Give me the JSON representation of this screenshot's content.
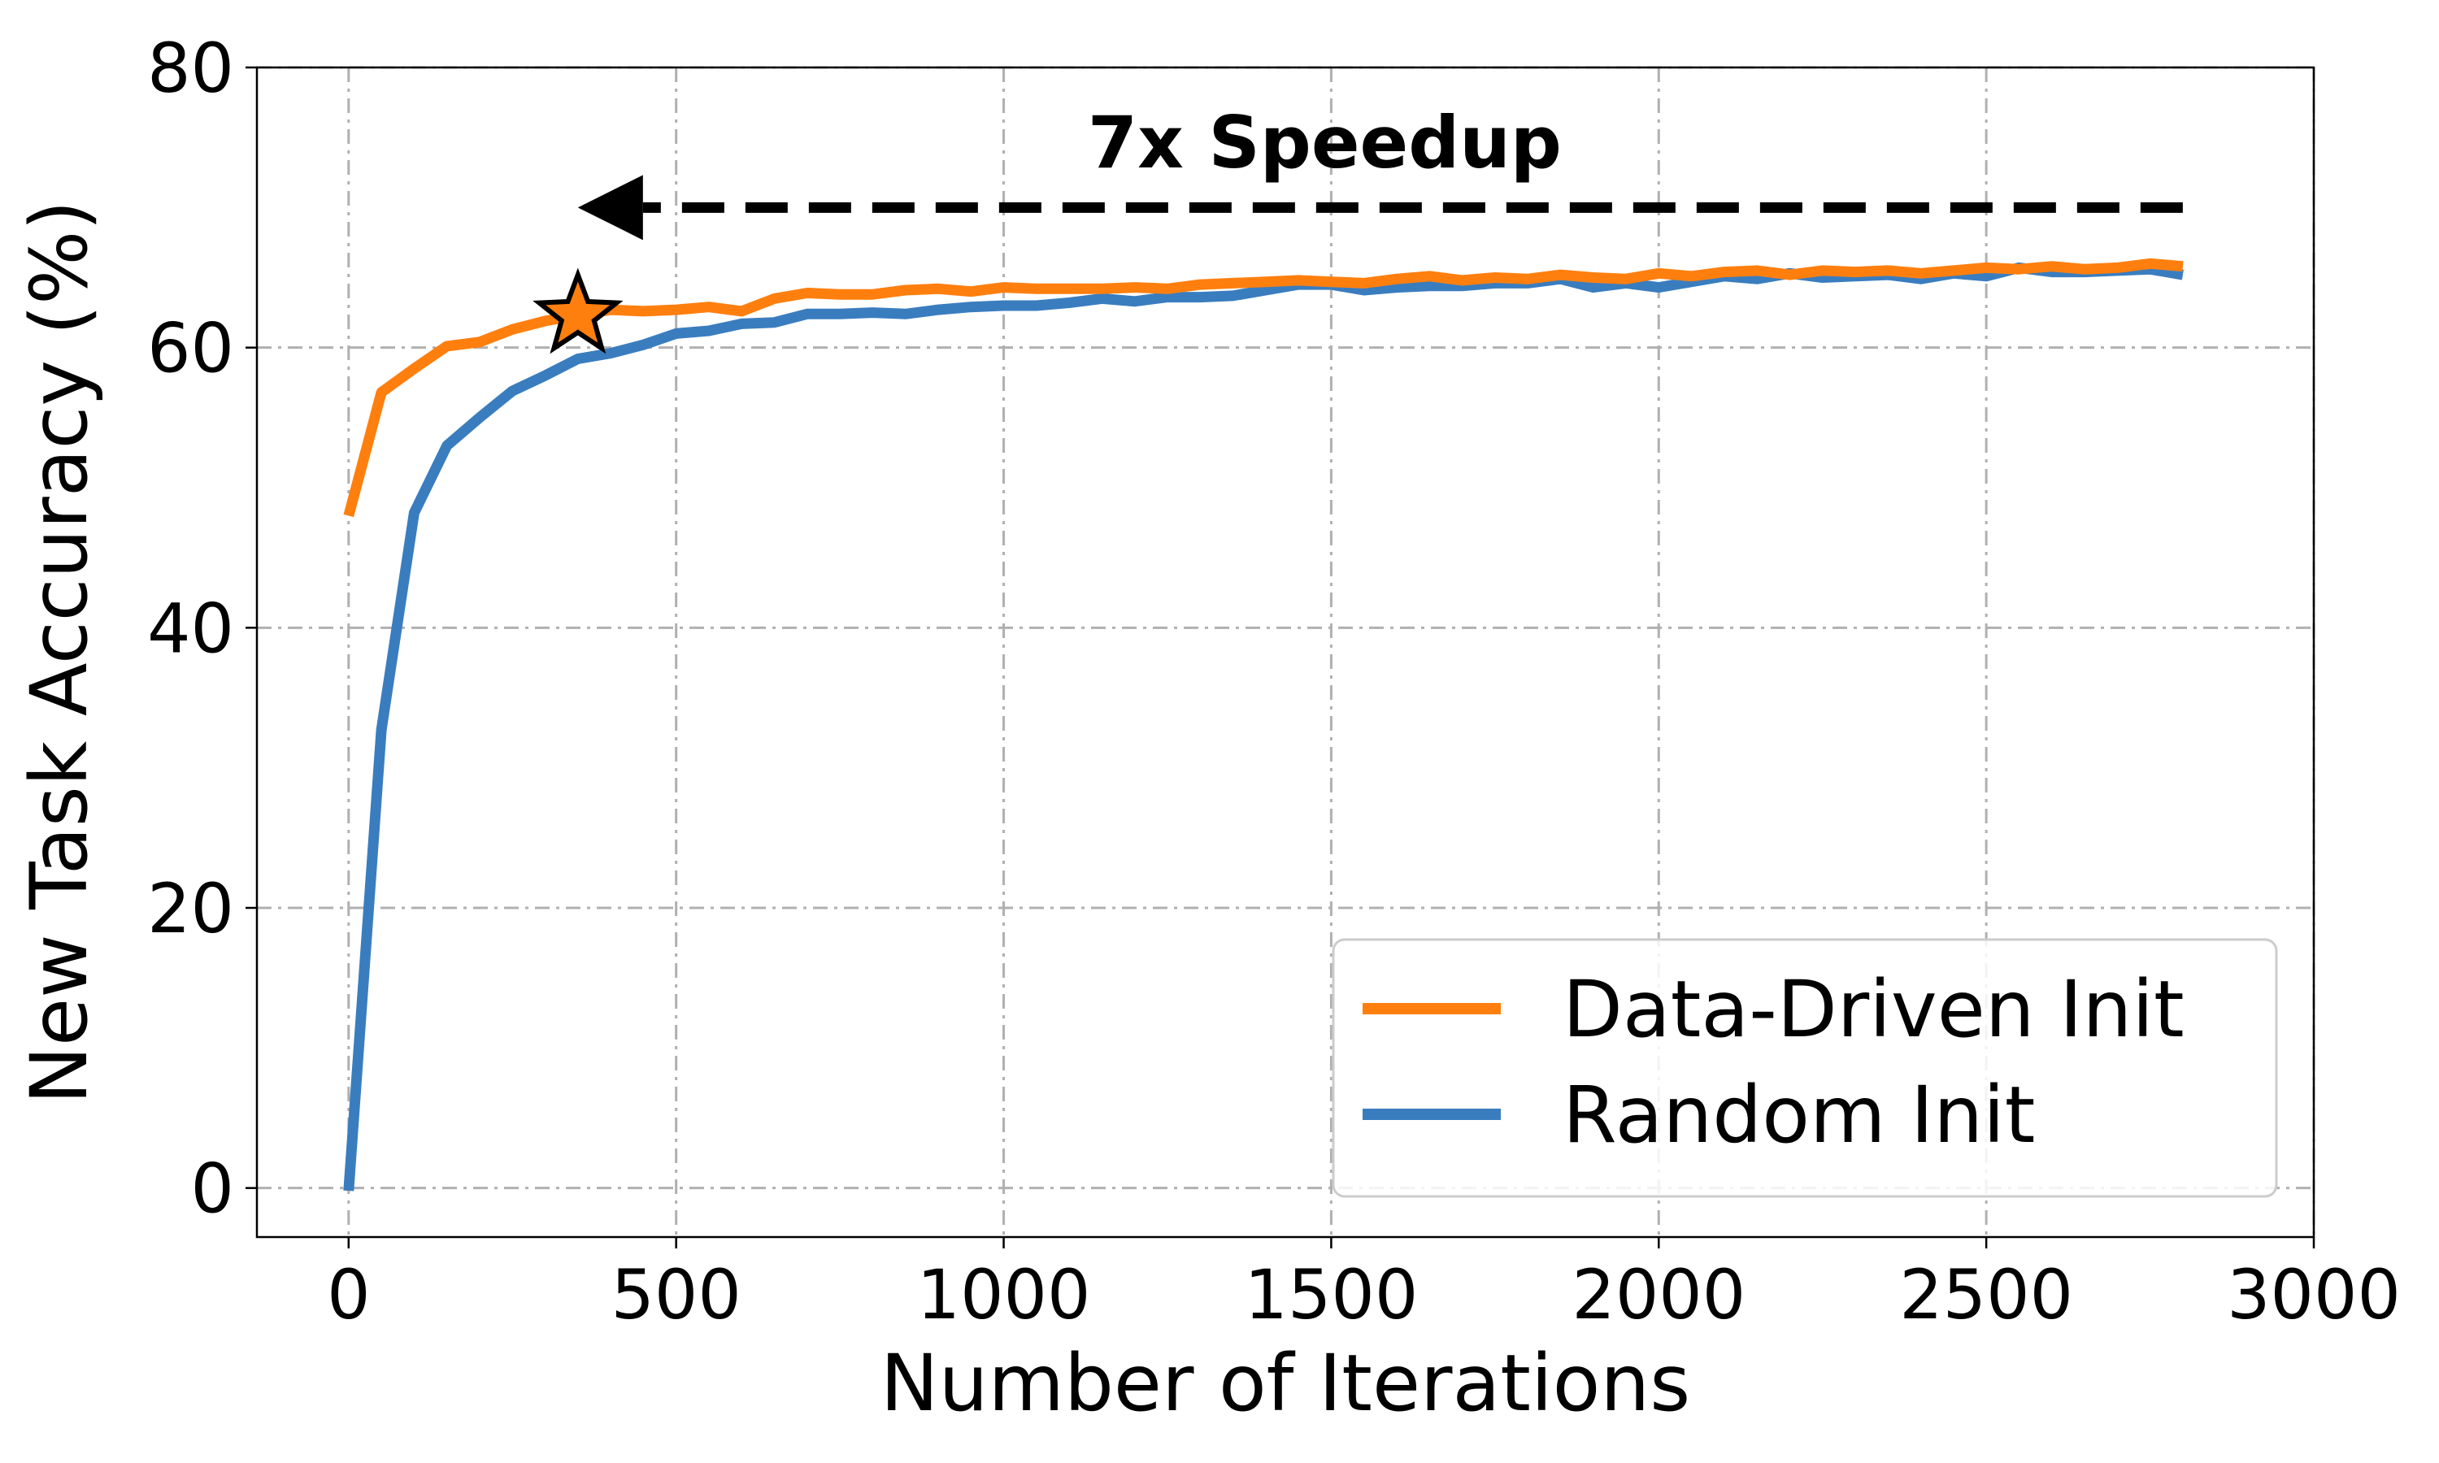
{
  "chart_data": {
    "type": "line",
    "xlabel": "Number of Iterations",
    "ylabel": "New Task Accuracy (%)",
    "xlim": [
      -140,
      3000
    ],
    "ylim": [
      -3.5,
      80
    ],
    "xticks": [
      0,
      500,
      1000,
      1500,
      2000,
      2500,
      3000
    ],
    "yticks": [
      0,
      20,
      40,
      60,
      80
    ],
    "grid": true,
    "legend_position": "lower-right",
    "series": [
      {
        "name": "Data-Driven Init",
        "color": "#ff7f0e",
        "x": [
          0,
          50,
          100,
          150,
          200,
          250,
          300,
          350,
          400,
          450,
          500,
          550,
          600,
          650,
          700,
          750,
          800,
          850,
          900,
          950,
          1000,
          1050,
          1100,
          1150,
          1200,
          1250,
          1300,
          1350,
          1400,
          1450,
          1500,
          1550,
          1600,
          1650,
          1700,
          1750,
          1800,
          1850,
          1900,
          1950,
          2000,
          2050,
          2100,
          2150,
          2200,
          2250,
          2300,
          2350,
          2400,
          2450,
          2500,
          2550,
          2600,
          2650,
          2700,
          2750,
          2800
        ],
        "y": [
          48.0,
          56.8,
          58.5,
          60.1,
          60.4,
          61.3,
          61.9,
          62.3,
          62.7,
          62.6,
          62.7,
          62.9,
          62.6,
          63.5,
          63.9,
          63.8,
          63.8,
          64.1,
          64.2,
          64.0,
          64.3,
          64.2,
          64.2,
          64.2,
          64.3,
          64.2,
          64.5,
          64.6,
          64.7,
          64.8,
          64.7,
          64.6,
          64.9,
          65.1,
          64.8,
          65.0,
          64.9,
          65.2,
          65.0,
          64.9,
          65.3,
          65.1,
          65.4,
          65.5,
          65.2,
          65.5,
          65.4,
          65.5,
          65.3,
          65.5,
          65.7,
          65.6,
          65.8,
          65.6,
          65.7,
          66.0,
          65.8
        ]
      },
      {
        "name": "Random Init",
        "color": "#3a7dbf",
        "x": [
          0,
          50,
          100,
          150,
          200,
          250,
          300,
          350,
          400,
          450,
          500,
          550,
          600,
          650,
          700,
          750,
          800,
          850,
          900,
          950,
          1000,
          1050,
          1100,
          1150,
          1200,
          1250,
          1300,
          1350,
          1400,
          1450,
          1500,
          1550,
          1600,
          1650,
          1700,
          1750,
          1800,
          1850,
          1900,
          1950,
          2000,
          2050,
          2100,
          2150,
          2200,
          2250,
          2300,
          2350,
          2400,
          2450,
          2500,
          2550,
          2600,
          2650,
          2700,
          2750,
          2800
        ],
        "y": [
          -0.2,
          32.7,
          48.2,
          53.0,
          55.0,
          56.9,
          58.0,
          59.2,
          59.6,
          60.2,
          61.0,
          61.2,
          61.7,
          61.8,
          62.4,
          62.4,
          62.5,
          62.4,
          62.7,
          62.9,
          63.0,
          63.0,
          63.2,
          63.5,
          63.3,
          63.6,
          63.6,
          63.7,
          64.1,
          64.5,
          64.5,
          64.1,
          64.3,
          64.4,
          64.4,
          64.6,
          64.6,
          64.9,
          64.3,
          64.6,
          64.3,
          64.7,
          65.1,
          64.9,
          65.3,
          65.0,
          65.1,
          65.2,
          64.9,
          65.3,
          65.1,
          65.7,
          65.4,
          65.4,
          65.5,
          65.6,
          65.2
        ]
      }
    ],
    "marker": {
      "shape": "star",
      "x": 350,
      "y": 62.3,
      "color": "#ff7f0e"
    },
    "annotation": {
      "text": "7x Speedup",
      "arrow_from_x": 2800,
      "arrow_to_x": 350,
      "arrow_y": 70,
      "text_x": 1490,
      "text_y": 74.6
    }
  }
}
